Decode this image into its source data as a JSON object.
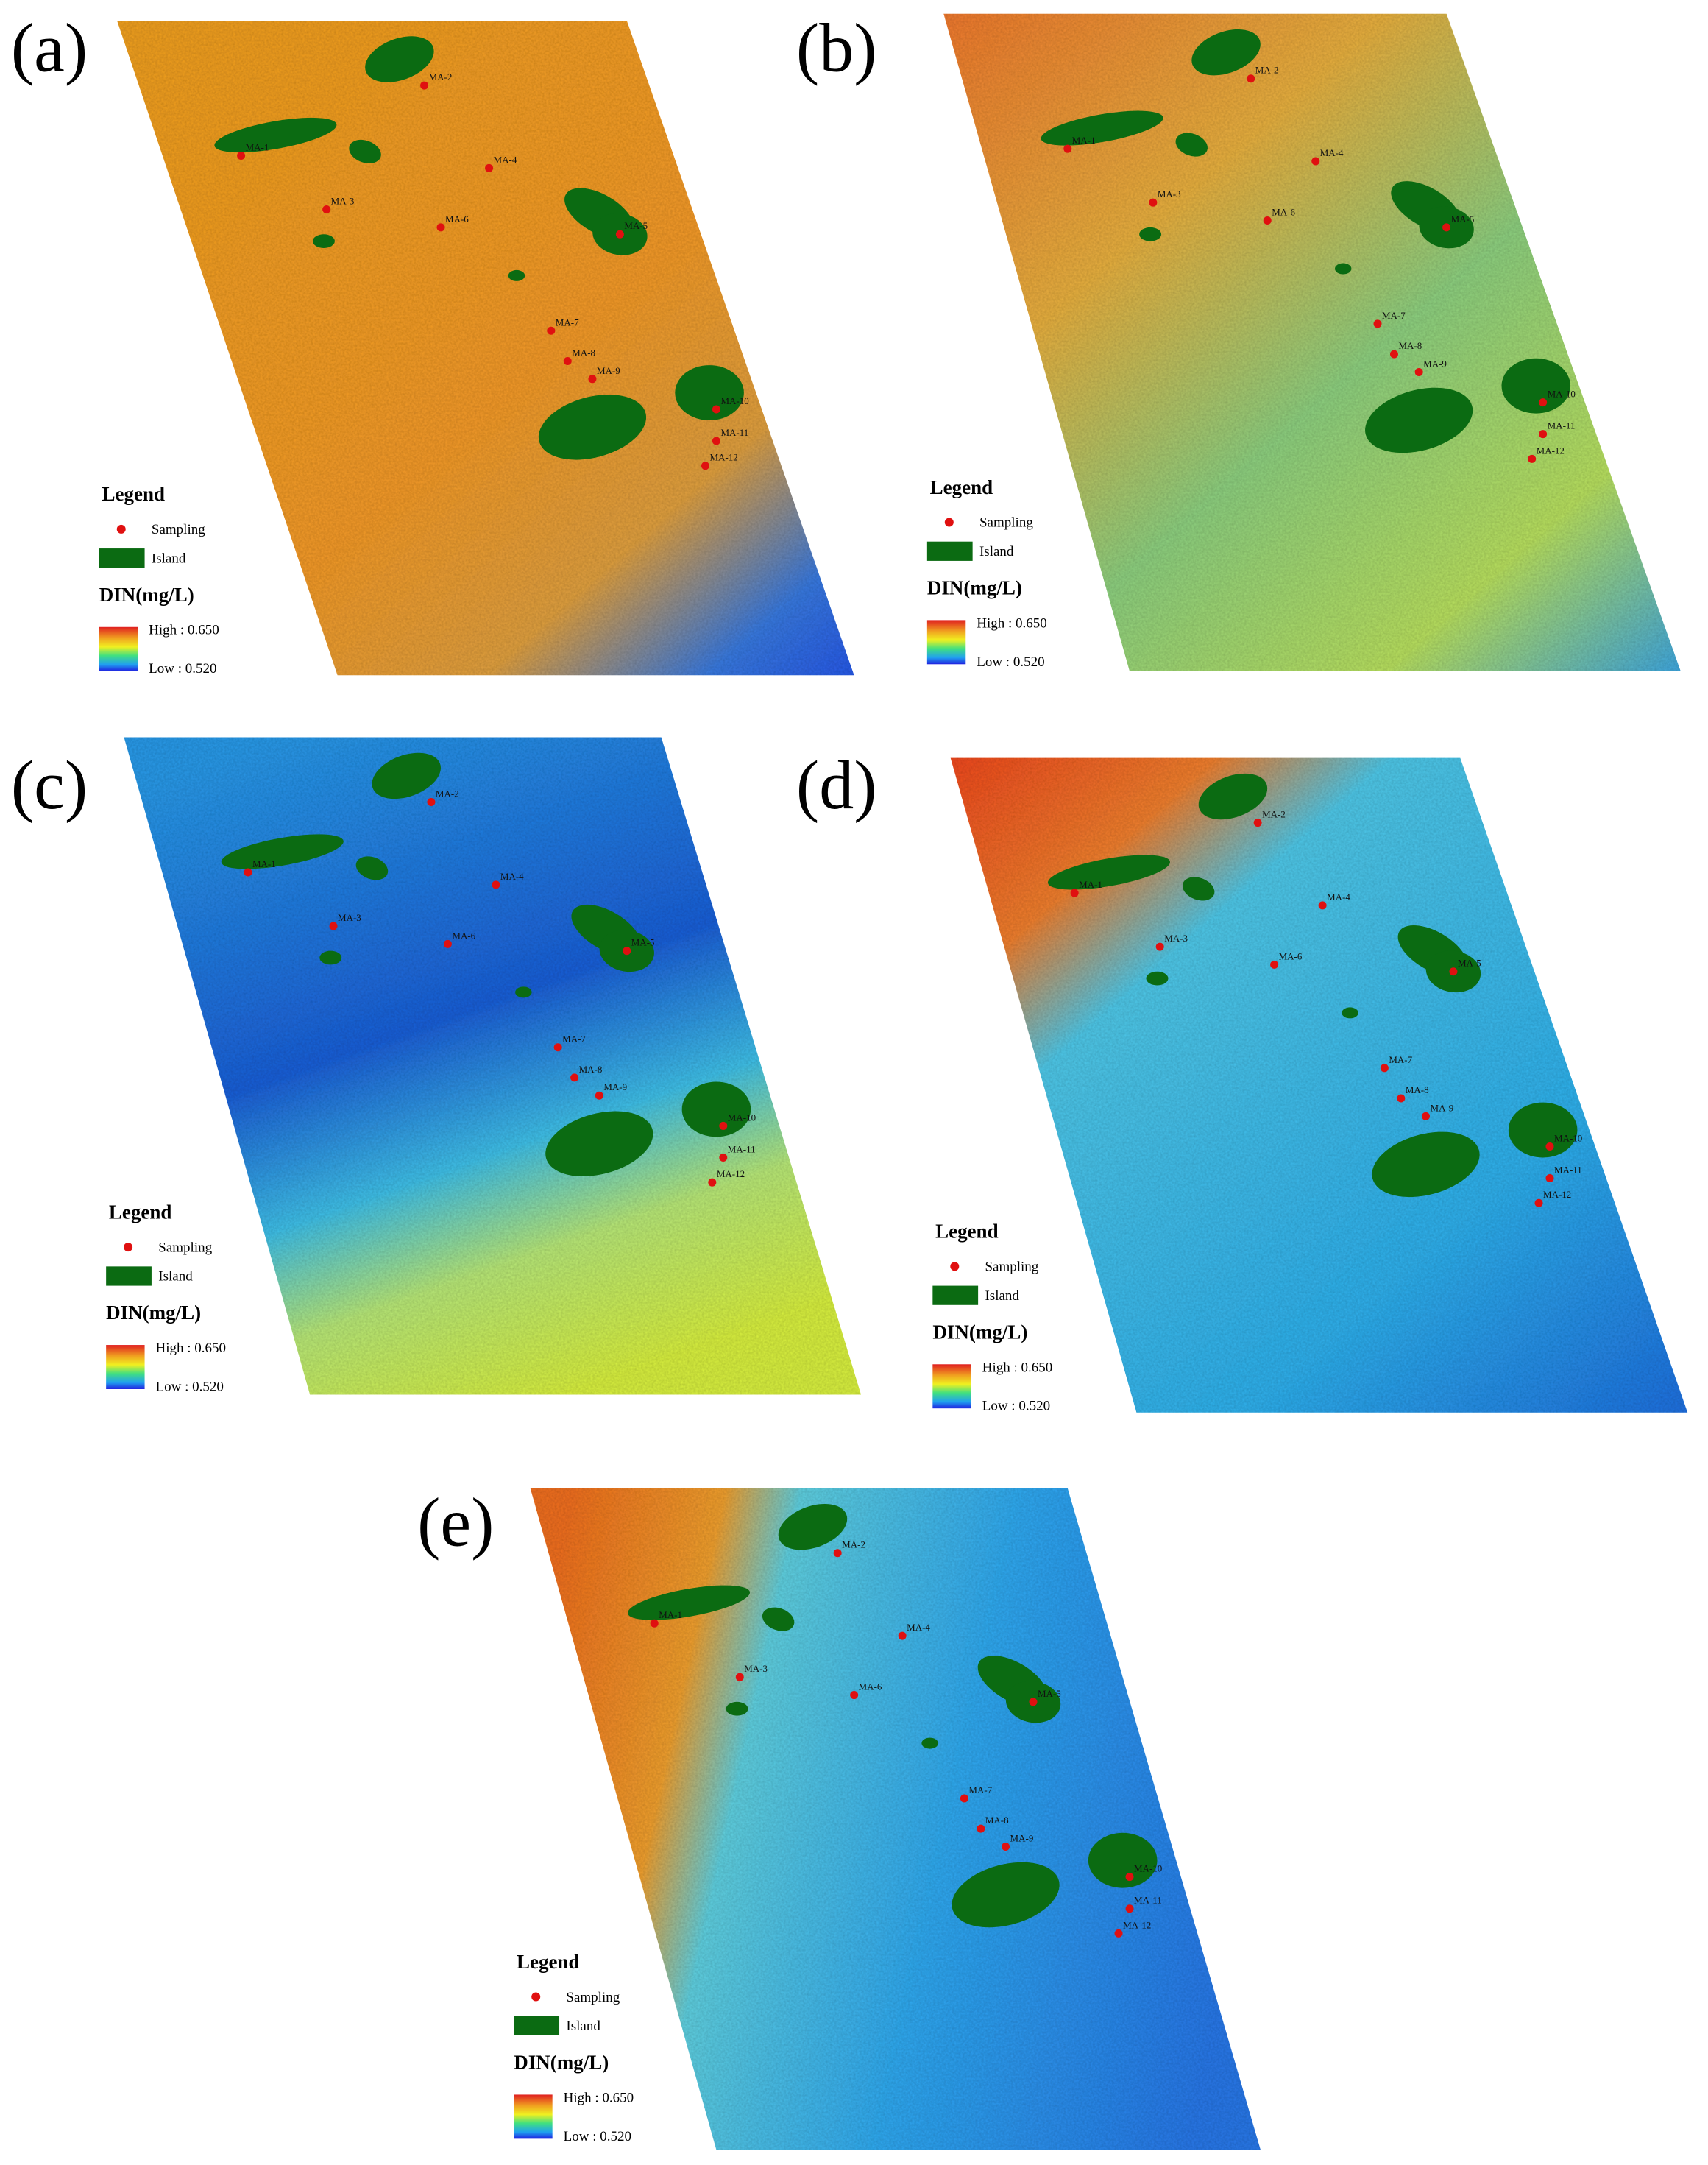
{
  "panels": [
    {
      "label": "(a)"
    },
    {
      "label": "(b)"
    },
    {
      "label": "(c)"
    },
    {
      "label": "(d)"
    },
    {
      "label": "(e)"
    }
  ],
  "legend": {
    "title": "Legend",
    "sampling": "Sampling",
    "island": "Island",
    "variable": "DIN(mg/L)",
    "high": "High : 0.650",
    "low": "Low : 0.520"
  },
  "sampling_points": [
    "MA-1",
    "MA-2",
    "MA-3",
    "MA-4",
    "MA-5",
    "MA-6",
    "MA-7",
    "MA-8",
    "MA-9",
    "MA-10",
    "MA-11",
    "MA-12"
  ]
}
